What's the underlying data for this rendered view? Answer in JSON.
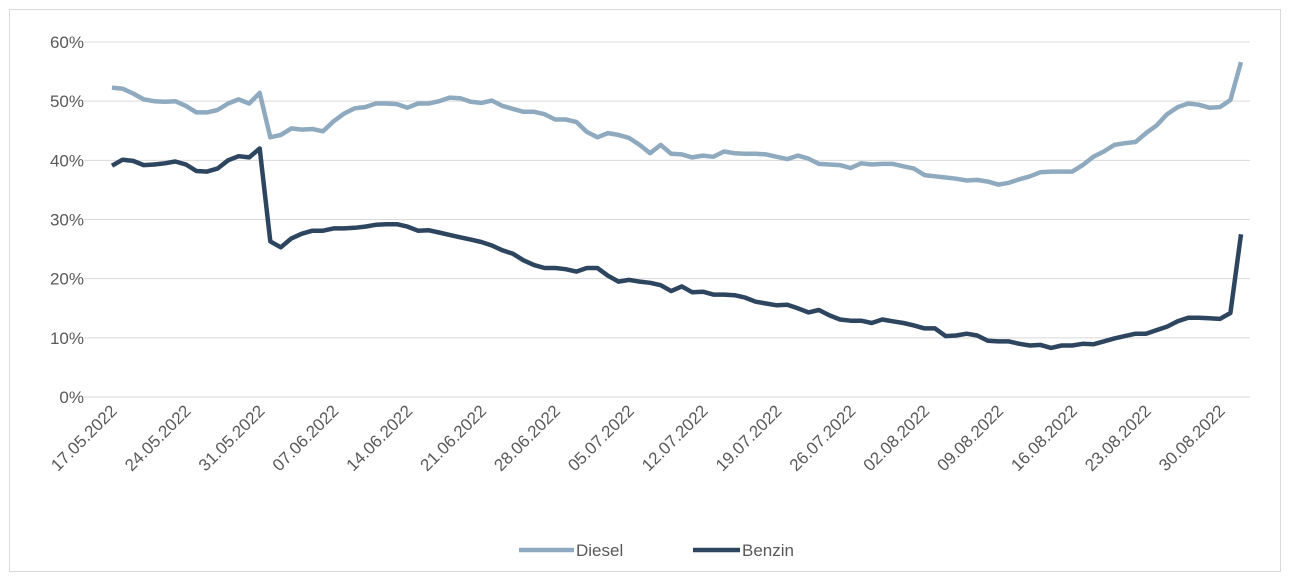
{
  "chart_data": {
    "type": "line",
    "categories": [
      "17.05.2022",
      null,
      null,
      null,
      null,
      null,
      null,
      "24.05.2022",
      null,
      null,
      null,
      null,
      null,
      null,
      "31.05.2022",
      null,
      null,
      null,
      null,
      null,
      null,
      "07.06.2022",
      null,
      null,
      null,
      null,
      null,
      null,
      "14.06.2022",
      null,
      null,
      null,
      null,
      null,
      null,
      "21.06.2022",
      null,
      null,
      null,
      null,
      null,
      null,
      "28.06.2022",
      null,
      null,
      null,
      null,
      null,
      null,
      "05.07.2022",
      null,
      null,
      null,
      null,
      null,
      null,
      "12.07.2022",
      null,
      null,
      null,
      null,
      null,
      null,
      "19.07.2022",
      null,
      null,
      null,
      null,
      null,
      null,
      "26.07.2022",
      null,
      null,
      null,
      null,
      null,
      null,
      "02.08.2022",
      null,
      null,
      null,
      null,
      null,
      null,
      "09.08.2022",
      null,
      null,
      null,
      null,
      null,
      null,
      "16.08.2022",
      null,
      null,
      null,
      null,
      null,
      null,
      "23.08.2022",
      null,
      null,
      null,
      null,
      null,
      null,
      "30.08.2022",
      null,
      null
    ],
    "series": [
      {
        "name": "Diesel",
        "color": "#8faabf",
        "values": [
          52.3,
          52.1,
          51.3,
          50.3,
          50.0,
          49.9,
          50.0,
          49.2,
          48.1,
          48.1,
          48.5,
          49.6,
          50.3,
          49.6,
          51.4,
          43.9,
          44.3,
          45.4,
          45.2,
          45.3,
          44.9,
          46.6,
          47.9,
          48.8,
          49.0,
          49.6,
          49.6,
          49.5,
          48.9,
          49.6,
          49.6,
          50.0,
          50.6,
          50.5,
          49.9,
          49.7,
          50.1,
          49.2,
          48.7,
          48.2,
          48.2,
          47.8,
          46.9,
          46.9,
          46.5,
          44.8,
          43.9,
          44.6,
          44.3,
          43.8,
          42.6,
          41.2,
          42.6,
          41.1,
          41.0,
          40.5,
          40.8,
          40.6,
          41.5,
          41.2,
          41.1,
          41.1,
          41.0,
          40.6,
          40.2,
          40.8,
          40.3,
          39.4,
          39.3,
          39.2,
          38.7,
          39.5,
          39.3,
          39.4,
          39.4,
          39.0,
          38.6,
          37.5,
          37.3,
          37.1,
          36.9,
          36.6,
          36.7,
          36.4,
          35.9,
          36.2,
          36.8,
          37.3,
          38.0,
          38.1,
          38.1,
          38.1,
          39.2,
          40.6,
          41.5,
          42.6,
          42.9,
          43.1,
          44.6,
          45.9,
          47.8,
          49.0,
          49.6,
          49.4,
          48.9,
          49.0,
          50.2,
          56.6
        ]
      },
      {
        "name": "Benzin",
        "color": "#2e4560",
        "values": [
          39.1,
          40.1,
          39.9,
          39.2,
          39.3,
          39.5,
          39.8,
          39.3,
          38.2,
          38.1,
          38.6,
          40.0,
          40.7,
          40.5,
          42.0,
          26.3,
          25.3,
          26.8,
          27.6,
          28.1,
          28.1,
          28.5,
          28.5,
          28.6,
          28.8,
          29.1,
          29.2,
          29.2,
          28.8,
          28.1,
          28.2,
          27.8,
          27.4,
          27.0,
          26.6,
          26.2,
          25.6,
          24.8,
          24.2,
          23.1,
          22.3,
          21.8,
          21.8,
          21.6,
          21.2,
          21.8,
          21.8,
          20.5,
          19.5,
          19.8,
          19.5,
          19.3,
          18.9,
          17.9,
          18.7,
          17.7,
          17.8,
          17.3,
          17.3,
          17.2,
          16.8,
          16.1,
          15.8,
          15.5,
          15.6,
          15.0,
          14.3,
          14.7,
          13.8,
          13.1,
          12.9,
          12.9,
          12.5,
          13.1,
          12.8,
          12.5,
          12.1,
          11.6,
          11.6,
          10.3,
          10.4,
          10.7,
          10.4,
          9.5,
          9.4,
          9.4,
          9.0,
          8.7,
          8.8,
          8.3,
          8.7,
          8.7,
          9.0,
          8.9,
          9.4,
          9.9,
          10.3,
          10.7,
          10.7,
          11.3,
          11.9,
          12.8,
          13.4,
          13.4,
          13.3,
          13.2,
          14.2,
          27.5
        ]
      }
    ],
    "ylim": [
      0,
      60
    ],
    "yticks": [
      {
        "value": 0,
        "label": "0%"
      },
      {
        "value": 10,
        "label": "10%"
      },
      {
        "value": 20,
        "label": "20%"
      },
      {
        "value": 30,
        "label": "30%"
      },
      {
        "value": 40,
        "label": "40%"
      },
      {
        "value": 50,
        "label": "50%"
      },
      {
        "value": 60,
        "label": "60%"
      }
    ],
    "grid": true,
    "legend": "bottom"
  }
}
